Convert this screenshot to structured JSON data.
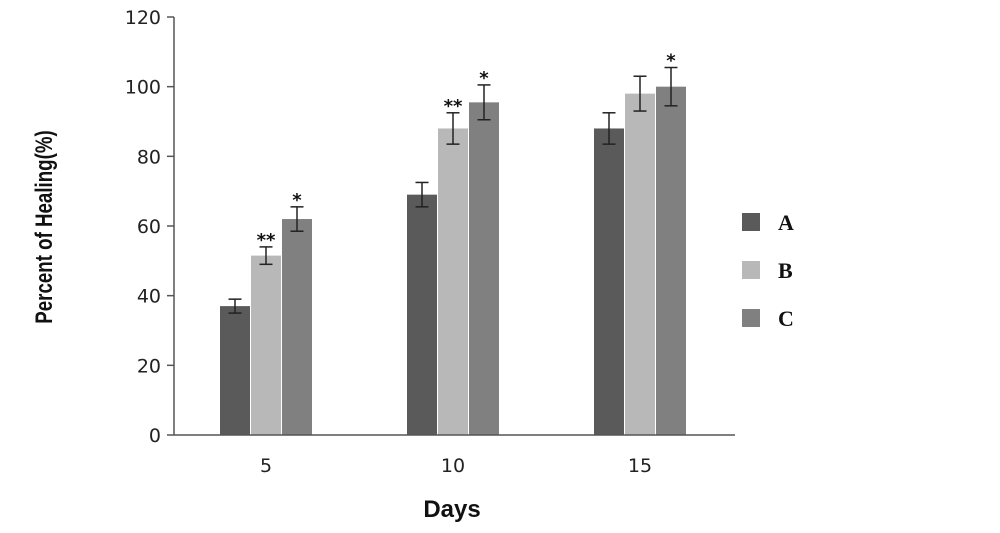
{
  "chart_data": {
    "type": "bar",
    "categories": [
      "5",
      "10",
      "15"
    ],
    "xlabel": "Days",
    "ylabel": "Percent of Healing(%)",
    "ylim": [
      0,
      120
    ],
    "yticks": [
      0,
      20,
      40,
      60,
      80,
      100,
      120
    ],
    "grid": false,
    "legend_position": "right",
    "series": [
      {
        "name": "A",
        "color": "#5a5a5a",
        "values": [
          37,
          69,
          88
        ],
        "errors": [
          2,
          3.5,
          4.5
        ],
        "significance": [
          "",
          "",
          ""
        ]
      },
      {
        "name": "B",
        "color": "#b8b8b8",
        "values": [
          51.5,
          88,
          98
        ],
        "errors": [
          2.5,
          4.5,
          5
        ],
        "significance": [
          "**",
          "**",
          ""
        ]
      },
      {
        "name": "C",
        "color": "#808080",
        "values": [
          62,
          95.5,
          100
        ],
        "errors": [
          3.5,
          5,
          5.5
        ],
        "significance": [
          "*",
          "*",
          "*"
        ]
      }
    ]
  }
}
